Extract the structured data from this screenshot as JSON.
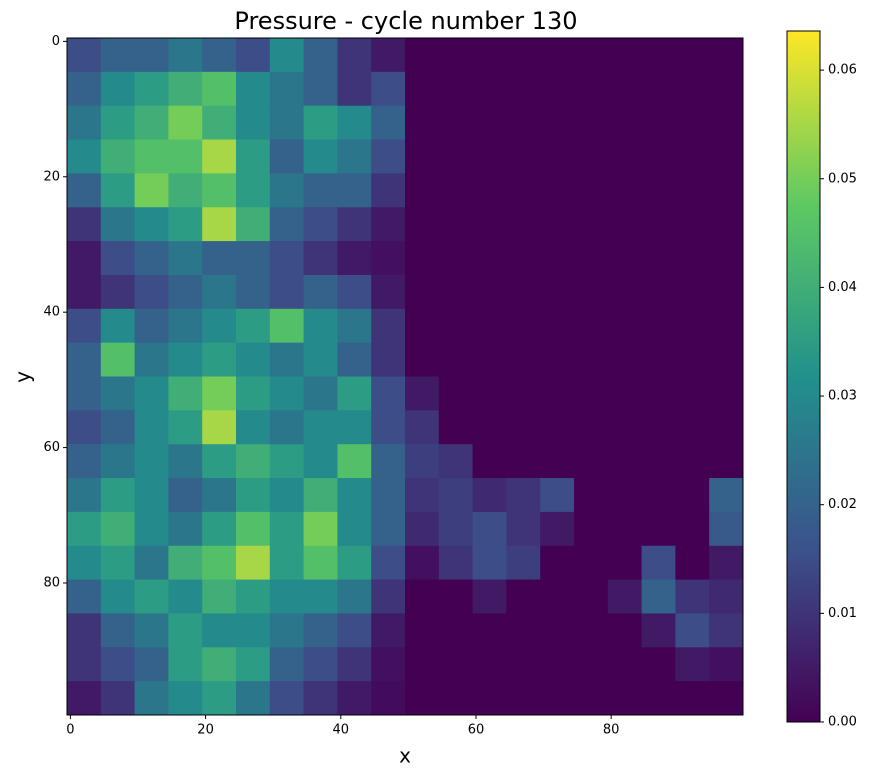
{
  "chart_data": {
    "type": "heatmap",
    "title": "Pressure - cycle number 130",
    "xlabel": "x",
    "ylabel": "y",
    "xlim": [
      -0.5,
      99.5
    ],
    "ylim": [
      99.5,
      -0.5
    ],
    "xticks": [
      0,
      20,
      40,
      60,
      80
    ],
    "yticks": [
      0,
      20,
      40,
      60,
      80
    ],
    "clim": [
      0,
      0.0636
    ],
    "cticks": [
      {
        "value": 0,
        "label": "0.00"
      },
      {
        "value": 0.01,
        "label": "0.01"
      },
      {
        "value": 0.02,
        "label": "0.02"
      },
      {
        "value": 0.03,
        "label": "0.03"
      },
      {
        "value": 0.04,
        "label": "0.04"
      },
      {
        "value": 0.05,
        "label": "0.05"
      },
      {
        "value": 0.06,
        "label": "0.06"
      }
    ],
    "colormap": [
      "#440154",
      "#3b528b",
      "#21918c",
      "#5ec962",
      "#fde725"
    ],
    "z": [
      [
        0.015,
        0.02,
        0.02,
        0.025,
        0.02,
        0.015,
        0.03,
        0.02,
        0.01,
        0.005,
        0,
        0,
        0,
        0,
        0,
        0,
        0,
        0,
        0,
        0
      ],
      [
        0.02,
        0.03,
        0.035,
        0.04,
        0.045,
        0.03,
        0.025,
        0.02,
        0.01,
        0.015,
        0,
        0,
        0,
        0,
        0,
        0,
        0,
        0,
        0,
        0
      ],
      [
        0.025,
        0.035,
        0.04,
        0.05,
        0.04,
        0.03,
        0.025,
        0.035,
        0.03,
        0.02,
        0,
        0,
        0,
        0,
        0,
        0,
        0,
        0,
        0,
        0
      ],
      [
        0.03,
        0.04,
        0.045,
        0.045,
        0.055,
        0.035,
        0.02,
        0.03,
        0.025,
        0.015,
        0,
        0,
        0,
        0,
        0,
        0,
        0,
        0,
        0,
        0
      ],
      [
        0.02,
        0.035,
        0.05,
        0.04,
        0.045,
        0.035,
        0.025,
        0.02,
        0.02,
        0.01,
        0,
        0,
        0,
        0,
        0,
        0,
        0,
        0,
        0,
        0
      ],
      [
        0.01,
        0.025,
        0.03,
        0.035,
        0.055,
        0.04,
        0.02,
        0.015,
        0.01,
        0.005,
        0,
        0,
        0,
        0,
        0,
        0,
        0,
        0,
        0,
        0
      ],
      [
        0.005,
        0.015,
        0.02,
        0.025,
        0.02,
        0.02,
        0.015,
        0.01,
        0.005,
        0.003,
        0,
        0,
        0,
        0,
        0,
        0,
        0,
        0,
        0,
        0
      ],
      [
        0.005,
        0.01,
        0.015,
        0.02,
        0.025,
        0.02,
        0.015,
        0.02,
        0.015,
        0.005,
        0,
        0,
        0,
        0,
        0,
        0,
        0,
        0,
        0,
        0
      ],
      [
        0.015,
        0.03,
        0.02,
        0.025,
        0.03,
        0.035,
        0.045,
        0.03,
        0.025,
        0.01,
        0,
        0,
        0,
        0,
        0,
        0,
        0,
        0,
        0,
        0
      ],
      [
        0.02,
        0.045,
        0.025,
        0.03,
        0.035,
        0.03,
        0.025,
        0.03,
        0.02,
        0.01,
        0,
        0,
        0,
        0,
        0,
        0,
        0,
        0,
        0,
        0
      ],
      [
        0.02,
        0.025,
        0.03,
        0.04,
        0.05,
        0.035,
        0.03,
        0.025,
        0.035,
        0.015,
        0.005,
        0,
        0,
        0,
        0,
        0,
        0,
        0,
        0,
        0
      ],
      [
        0.015,
        0.02,
        0.03,
        0.035,
        0.055,
        0.03,
        0.025,
        0.03,
        0.03,
        0.015,
        0.01,
        0,
        0,
        0,
        0,
        0,
        0,
        0,
        0,
        0
      ],
      [
        0.02,
        0.025,
        0.03,
        0.025,
        0.035,
        0.04,
        0.035,
        0.03,
        0.045,
        0.02,
        0.012,
        0.01,
        0,
        0,
        0,
        0,
        0,
        0,
        0,
        0
      ],
      [
        0.025,
        0.035,
        0.03,
        0.02,
        0.025,
        0.035,
        0.03,
        0.04,
        0.03,
        0.02,
        0.01,
        0.012,
        0.008,
        0.01,
        0.015,
        0,
        0,
        0,
        0,
        0.02
      ],
      [
        0.035,
        0.04,
        0.03,
        0.025,
        0.035,
        0.045,
        0.035,
        0.05,
        0.03,
        0.02,
        0.008,
        0.012,
        0.015,
        0.01,
        0.005,
        0,
        0,
        0,
        0,
        0.018
      ],
      [
        0.03,
        0.035,
        0.025,
        0.04,
        0.045,
        0.055,
        0.035,
        0.045,
        0.035,
        0.015,
        0.003,
        0.01,
        0.015,
        0.012,
        0,
        0,
        0,
        0.015,
        0,
        0.005
      ],
      [
        0.02,
        0.03,
        0.035,
        0.03,
        0.04,
        0.035,
        0.03,
        0.03,
        0.025,
        0.01,
        0,
        0,
        0.005,
        0,
        0,
        0,
        0.005,
        0.02,
        0.01,
        0.008
      ],
      [
        0.01,
        0.02,
        0.025,
        0.035,
        0.03,
        0.03,
        0.025,
        0.02,
        0.015,
        0.005,
        0,
        0,
        0,
        0,
        0,
        0,
        0,
        0.005,
        0.015,
        0.01
      ],
      [
        0.01,
        0.015,
        0.02,
        0.035,
        0.04,
        0.035,
        0.02,
        0.015,
        0.01,
        0.003,
        0,
        0,
        0,
        0,
        0,
        0,
        0,
        0,
        0.005,
        0.003
      ],
      [
        0.005,
        0.01,
        0.025,
        0.03,
        0.035,
        0.025,
        0.015,
        0.01,
        0.005,
        0.002,
        0,
        0,
        0,
        0,
        0,
        0,
        0,
        0,
        0,
        0
      ]
    ]
  }
}
